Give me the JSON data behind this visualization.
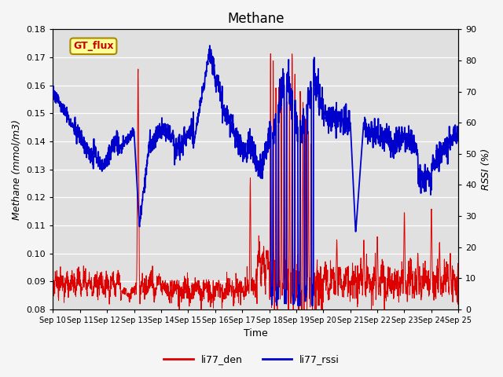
{
  "title": "Methane",
  "ylabel_left": "Methane (mmol/m3)",
  "ylabel_right": "RSSI (%)",
  "xlabel": "Time",
  "ylim_left": [
    0.08,
    0.18
  ],
  "ylim_right": [
    0,
    90
  ],
  "yticks_left": [
    0.08,
    0.09,
    0.1,
    0.11,
    0.12,
    0.13,
    0.14,
    0.15,
    0.16,
    0.17,
    0.18
  ],
  "yticks_right": [
    0,
    10,
    20,
    30,
    40,
    50,
    60,
    70,
    80,
    90
  ],
  "xtick_labels": [
    "Sep 10",
    "Sep 11",
    "Sep 12",
    "Sep 13",
    "Sep 14",
    "Sep 15",
    "Sep 16",
    "Sep 17",
    "Sep 18",
    "Sep 19",
    "Sep 20",
    "Sep 21",
    "Sep 22",
    "Sep 23",
    "Sep 24",
    "Sep 25"
  ],
  "background_color": "#e0e0e0",
  "grid_color": "#ffffff",
  "annotation_text": "GT_flux",
  "annotation_color": "#cc0000",
  "annotation_bg": "#ffff99",
  "annotation_border": "#aa8800",
  "legend_entries": [
    "li77_den",
    "li77_rssi"
  ],
  "legend_colors": [
    "#dd0000",
    "#0000cc"
  ],
  "line_color_red": "#dd0000",
  "line_color_blue": "#0000cc",
  "title_fontsize": 12,
  "axis_fontsize": 9,
  "tick_fontsize": 8
}
